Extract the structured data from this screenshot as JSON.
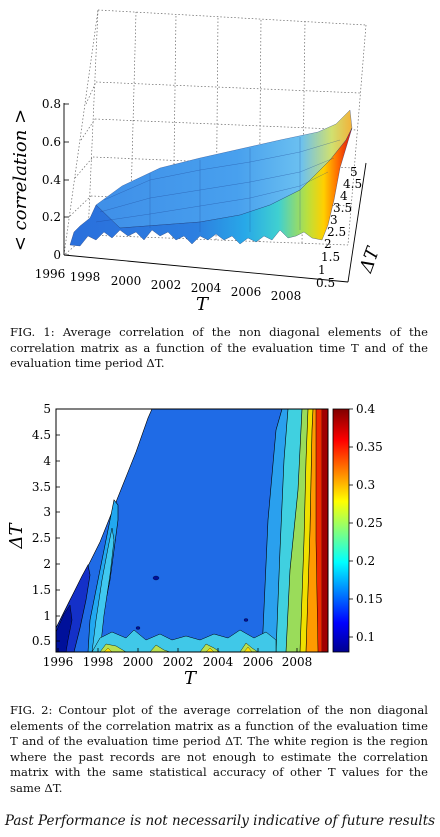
{
  "chart_data": [
    {
      "type": "surface",
      "x_ticks": [
        "1996",
        "1998",
        "2000",
        "2002",
        "2004",
        "2006",
        "2008"
      ],
      "y_ticks": [
        "0.5",
        "1",
        "1.5",
        "2",
        "2.5",
        "3",
        "3.5",
        "4",
        "4.5",
        "5"
      ],
      "z_ticks": [
        "0",
        "0.2",
        "0.4",
        "0.6",
        "0.8"
      ],
      "xlabel": "T",
      "ylabel": "ΔT",
      "zlabel": "< correlation >",
      "xlim": [
        1996,
        2009.5
      ],
      "ylim": [
        0.5,
        5
      ],
      "zlim": [
        0,
        0.8
      ]
    },
    {
      "type": "contour",
      "x_ticks": [
        "1996",
        "1998",
        "2000",
        "2002",
        "2004",
        "2006",
        "2008"
      ],
      "y_ticks": [
        "0.5",
        "1",
        "1.5",
        "2",
        "2.5",
        "3",
        "3.5",
        "4",
        "4.5",
        "5"
      ],
      "colorbar_ticks": [
        "0.1",
        "0.15",
        "0.2",
        "0.25",
        "0.3",
        "0.35",
        "0.4"
      ],
      "xlabel": "T",
      "ylabel": "ΔT",
      "xlim": [
        1996,
        2009.5
      ],
      "ylim": [
        0.3,
        5
      ],
      "clim": [
        0.08,
        0.4
      ],
      "colors": [
        "#00008f",
        "#1e64e6",
        "#00c8e6",
        "#9ae064",
        "#f5f000",
        "#ff9000",
        "#d00000",
        "#800000"
      ]
    }
  ],
  "captions": {
    "fig1": "FIG. 1: Average correlation of the non diagonal elements of the correlation matrix as a function of the evaluation time T and of the evaluation time period ΔT.",
    "fig2": "FIG. 2: Contour plot of the average correlation of the non diagonal elements of the correlation matrix as a function of the evaluation time T and of the evaluation time period ΔT. The white region is the region where the past records are not enough to estimate the correlation matrix with the same statistical accuracy of other T values for the same ΔT."
  },
  "footer": "Past Performance is not necessarily indicative of future results"
}
